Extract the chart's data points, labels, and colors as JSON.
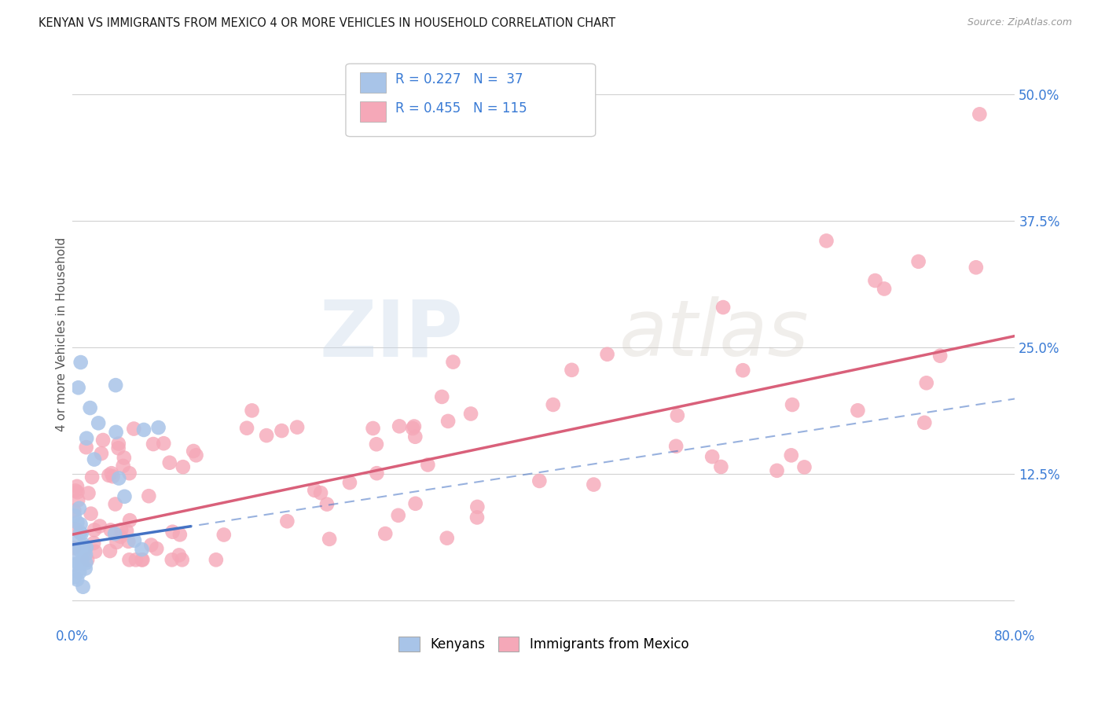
{
  "title": "KENYAN VS IMMIGRANTS FROM MEXICO 4 OR MORE VEHICLES IN HOUSEHOLD CORRELATION CHART",
  "source": "Source: ZipAtlas.com",
  "ylabel": "4 or more Vehicles in Household",
  "xlim": [
    0.0,
    0.8
  ],
  "ylim": [
    -0.025,
    0.55
  ],
  "xticks": [
    0.0,
    0.2,
    0.4,
    0.6,
    0.8
  ],
  "xticklabels": [
    "0.0%",
    "",
    "",
    "",
    "80.0%"
  ],
  "yticks": [
    0.0,
    0.125,
    0.25,
    0.375,
    0.5
  ],
  "yticklabels": [
    "",
    "12.5%",
    "25.0%",
    "37.5%",
    "50.0%"
  ],
  "kenyan_R": 0.227,
  "kenyan_N": 37,
  "mexico_R": 0.455,
  "mexico_N": 115,
  "kenyan_color": "#a8c4e8",
  "mexico_color": "#f5a8b8",
  "kenyan_line_color": "#4472c4",
  "mexico_line_color": "#d9607a",
  "background_color": "#ffffff",
  "grid_color": "#cccccc",
  "watermark_zip": "ZIP",
  "watermark_atlas": "atlas",
  "legend_box_color": "#f0f0f0",
  "kenyan_slope": 0.18,
  "kenyan_intercept": 0.055,
  "mexico_slope": 0.245,
  "mexico_intercept": 0.065
}
